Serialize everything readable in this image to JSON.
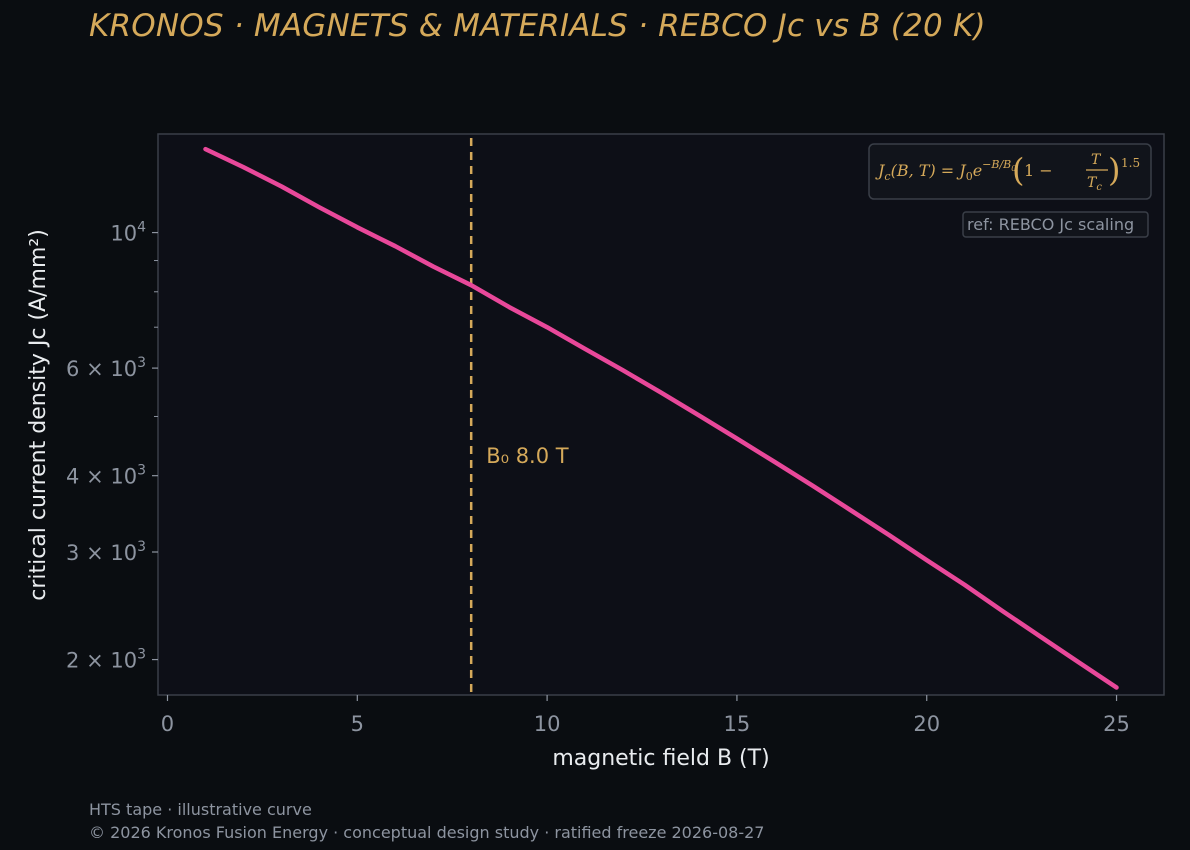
{
  "header": {
    "title": "KRONOS · MAGNETS & MATERIALS  ·  REBCO Jc vs B (20 K)"
  },
  "footer": {
    "line1": "HTS tape · illustrative curve",
    "line2": "© 2026 Kronos Fusion Energy · conceptual design study · ratified freeze 2026-08-27"
  },
  "colors": {
    "background": "#0a0d11",
    "plot_bg": "#0d0f17",
    "series": "#e8489a",
    "accent": "#d5a95a",
    "muted_text": "#8d94a0"
  },
  "chart_data": {
    "type": "line",
    "title": "",
    "xlabel": "magnetic field B (T)",
    "ylabel": "critical current density Jc (A/mm²)",
    "xlim": [
      -0.25,
      26.25
    ],
    "ylim": [
      1750,
      14500
    ],
    "yscale": "log",
    "grid": false,
    "x_ticks": [
      0,
      5,
      10,
      15,
      20,
      25
    ],
    "y_ticks": [
      {
        "value": 10000,
        "mantissa": "",
        "exp": "4"
      },
      {
        "value": 6000,
        "mantissa": "6 × ",
        "exp": "3"
      },
      {
        "value": 4000,
        "mantissa": "4 × ",
        "exp": "3"
      },
      {
        "value": 3000,
        "mantissa": "3 × ",
        "exp": "3"
      },
      {
        "value": 2000,
        "mantissa": "2 × ",
        "exp": "3"
      }
    ],
    "y_minor_ticks": [
      7000,
      8000,
      9000,
      5000
    ],
    "series": [
      {
        "x": [
          1,
          2,
          3,
          4,
          5,
          6,
          7,
          8,
          9,
          10,
          11,
          12,
          13,
          14,
          15,
          16,
          17,
          18,
          19,
          20,
          21,
          22,
          23,
          24,
          25
        ],
        "y": [
          13700,
          12800,
          11900,
          11000,
          10200,
          9500,
          8800,
          8200,
          7550,
          7000,
          6450,
          5950,
          5470,
          5020,
          4600,
          4210,
          3850,
          3510,
          3200,
          2910,
          2650,
          2400,
          2180,
          1980,
          1800
        ]
      }
    ],
    "vline": {
      "x": 8.0,
      "label": "B₀ 8.0 T"
    },
    "annotations": {
      "formula": "J_c(B,T) = J_0 e^{-B/B_0} (1 - T/T_c)^1.5",
      "formula_parts": {
        "lhs_j": "J",
        "lhs_sub": "c",
        "lhs_args": "(B, T) = ",
        "j0": "J",
        "j0_sub": "0",
        "e": "e",
        "exp": "−B/B",
        "exp_sub": "0",
        "bracket_one": "1 −",
        "frac_num": "T",
        "frac_den": "T",
        "frac_den_sub": "c",
        "power": "1.5"
      },
      "ref": "ref: REBCO Jc scaling"
    }
  }
}
